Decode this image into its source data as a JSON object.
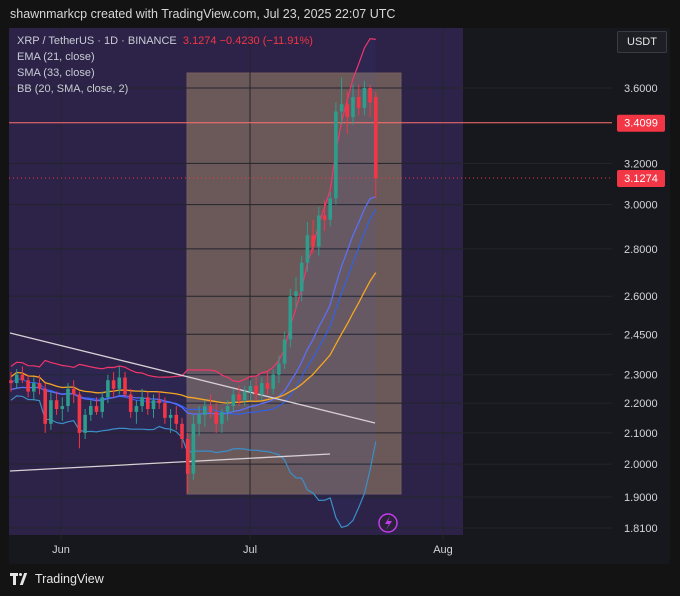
{
  "header": {
    "text": "shawnmarkcp created with TradingView.com, Jul 23, 2025 22:07 UTC"
  },
  "legend": {
    "symbol": "XRP / TetherUS · 1D · BINANCE",
    "price": "3.1274",
    "change": "−0.4230 (−11.91%)",
    "ema": "EMA (21, close)",
    "sma": "SMA (33, close)",
    "bb": "BB (20, SMA, close, 2)"
  },
  "unit_button": "USDT",
  "footer": {
    "brand": "TradingView"
  },
  "colors": {
    "background": "#17181d",
    "panel": "#31244f",
    "zone": "#b89d72",
    "up": "#2e9d8c",
    "down": "#f23645",
    "ema": "#5b6ff7",
    "sma": "#f5a623",
    "bb_band": "#f2366c",
    "bb_basis": "#2962ff",
    "bb_lower": "#3b8ec9",
    "price_line": "#f23645",
    "level_line": "#ff7070"
  },
  "chart_data": {
    "type": "candlestick",
    "x_label": "",
    "y_label": "",
    "y_scale": "log",
    "y_range": [
      1.78,
      4.05
    ],
    "y_ticks": [
      "3.6000",
      "3.2000",
      "3.0000",
      "2.8000",
      "2.6000",
      "2.4500",
      "2.3000",
      "2.2000",
      "2.1000",
      "2.0000",
      "1.9000",
      "1.8100"
    ],
    "x_ticks": [
      "Jun",
      "Jul",
      "Aug"
    ],
    "price_label": "3.1274",
    "level_label": "3.4099",
    "level": 3.4099,
    "current_price": 3.1274,
    "candles": [
      {
        "o": 2.28,
        "h": 2.31,
        "l": 2.24,
        "c": 2.27
      },
      {
        "o": 2.27,
        "h": 2.32,
        "l": 2.25,
        "c": 2.3
      },
      {
        "o": 2.3,
        "h": 2.33,
        "l": 2.27,
        "c": 2.28
      },
      {
        "o": 2.28,
        "h": 2.3,
        "l": 2.22,
        "c": 2.24
      },
      {
        "o": 2.24,
        "h": 2.29,
        "l": 2.21,
        "c": 2.27
      },
      {
        "o": 2.27,
        "h": 2.3,
        "l": 2.23,
        "c": 2.25
      },
      {
        "o": 2.25,
        "h": 2.27,
        "l": 2.1,
        "c": 2.13
      },
      {
        "o": 2.13,
        "h": 2.24,
        "l": 2.11,
        "c": 2.21
      },
      {
        "o": 2.21,
        "h": 2.24,
        "l": 2.16,
        "c": 2.18
      },
      {
        "o": 2.18,
        "h": 2.22,
        "l": 2.14,
        "c": 2.19
      },
      {
        "o": 2.19,
        "h": 2.27,
        "l": 2.17,
        "c": 2.25
      },
      {
        "o": 2.25,
        "h": 2.28,
        "l": 2.2,
        "c": 2.23
      },
      {
        "o": 2.23,
        "h": 2.24,
        "l": 2.05,
        "c": 2.1
      },
      {
        "o": 2.1,
        "h": 2.18,
        "l": 2.08,
        "c": 2.16
      },
      {
        "o": 2.16,
        "h": 2.21,
        "l": 2.14,
        "c": 2.19
      },
      {
        "o": 2.19,
        "h": 2.22,
        "l": 2.16,
        "c": 2.17
      },
      {
        "o": 2.17,
        "h": 2.24,
        "l": 2.15,
        "c": 2.22
      },
      {
        "o": 2.22,
        "h": 2.3,
        "l": 2.2,
        "c": 2.28
      },
      {
        "o": 2.28,
        "h": 2.31,
        "l": 2.22,
        "c": 2.25
      },
      {
        "o": 2.25,
        "h": 2.33,
        "l": 2.23,
        "c": 2.29
      },
      {
        "o": 2.29,
        "h": 2.31,
        "l": 2.22,
        "c": 2.23
      },
      {
        "o": 2.23,
        "h": 2.25,
        "l": 2.15,
        "c": 2.17
      },
      {
        "o": 2.17,
        "h": 2.21,
        "l": 2.13,
        "c": 2.19
      },
      {
        "o": 2.19,
        "h": 2.25,
        "l": 2.17,
        "c": 2.22
      },
      {
        "o": 2.22,
        "h": 2.24,
        "l": 2.16,
        "c": 2.18
      },
      {
        "o": 2.18,
        "h": 2.23,
        "l": 2.15,
        "c": 2.21
      },
      {
        "o": 2.21,
        "h": 2.24,
        "l": 2.18,
        "c": 2.2
      },
      {
        "o": 2.2,
        "h": 2.22,
        "l": 2.13,
        "c": 2.15
      },
      {
        "o": 2.15,
        "h": 2.18,
        "l": 2.1,
        "c": 2.16
      },
      {
        "o": 2.16,
        "h": 2.19,
        "l": 2.11,
        "c": 2.13
      },
      {
        "o": 2.13,
        "h": 2.15,
        "l": 2.05,
        "c": 2.08
      },
      {
        "o": 2.08,
        "h": 2.1,
        "l": 1.91,
        "c": 1.97
      },
      {
        "o": 1.97,
        "h": 2.16,
        "l": 1.95,
        "c": 2.13
      },
      {
        "o": 2.13,
        "h": 2.19,
        "l": 2.09,
        "c": 2.16
      },
      {
        "o": 2.16,
        "h": 2.21,
        "l": 2.12,
        "c": 2.19
      },
      {
        "o": 2.19,
        "h": 2.23,
        "l": 2.15,
        "c": 2.17
      },
      {
        "o": 2.17,
        "h": 2.2,
        "l": 2.1,
        "c": 2.13
      },
      {
        "o": 2.13,
        "h": 2.18,
        "l": 2.1,
        "c": 2.17
      },
      {
        "o": 2.17,
        "h": 2.21,
        "l": 2.14,
        "c": 2.19
      },
      {
        "o": 2.19,
        "h": 2.25,
        "l": 2.17,
        "c": 2.23
      },
      {
        "o": 2.23,
        "h": 2.26,
        "l": 2.19,
        "c": 2.21
      },
      {
        "o": 2.21,
        "h": 2.26,
        "l": 2.19,
        "c": 2.24
      },
      {
        "o": 2.24,
        "h": 2.28,
        "l": 2.21,
        "c": 2.26
      },
      {
        "o": 2.26,
        "h": 2.29,
        "l": 2.21,
        "c": 2.23
      },
      {
        "o": 2.23,
        "h": 2.29,
        "l": 2.21,
        "c": 2.27
      },
      {
        "o": 2.27,
        "h": 2.31,
        "l": 2.23,
        "c": 2.25
      },
      {
        "o": 2.25,
        "h": 2.32,
        "l": 2.23,
        "c": 2.3
      },
      {
        "o": 2.3,
        "h": 2.37,
        "l": 2.27,
        "c": 2.34
      },
      {
        "o": 2.34,
        "h": 2.46,
        "l": 2.32,
        "c": 2.43
      },
      {
        "o": 2.43,
        "h": 2.63,
        "l": 2.4,
        "c": 2.6
      },
      {
        "o": 2.6,
        "h": 2.68,
        "l": 2.55,
        "c": 2.62
      },
      {
        "o": 2.62,
        "h": 2.77,
        "l": 2.58,
        "c": 2.74
      },
      {
        "o": 2.74,
        "h": 2.92,
        "l": 2.7,
        "c": 2.86
      },
      {
        "o": 2.86,
        "h": 2.93,
        "l": 2.78,
        "c": 2.81
      },
      {
        "o": 2.81,
        "h": 2.99,
        "l": 2.77,
        "c": 2.95
      },
      {
        "o": 2.95,
        "h": 3.02,
        "l": 2.88,
        "c": 2.93
      },
      {
        "o": 2.93,
        "h": 3.06,
        "l": 2.9,
        "c": 3.03
      },
      {
        "o": 3.03,
        "h": 3.52,
        "l": 3.0,
        "c": 3.47
      },
      {
        "o": 3.47,
        "h": 3.66,
        "l": 3.4,
        "c": 3.51
      },
      {
        "o": 3.51,
        "h": 3.58,
        "l": 3.35,
        "c": 3.44
      },
      {
        "o": 3.44,
        "h": 3.62,
        "l": 3.4,
        "c": 3.55
      },
      {
        "o": 3.55,
        "h": 3.62,
        "l": 3.45,
        "c": 3.49
      },
      {
        "o": 3.49,
        "h": 3.64,
        "l": 3.45,
        "c": 3.6
      },
      {
        "o": 3.6,
        "h": 3.62,
        "l": 3.44,
        "c": 3.52
      },
      {
        "o": 3.55,
        "h": 3.58,
        "l": 3.03,
        "c": 3.1274
      }
    ]
  }
}
